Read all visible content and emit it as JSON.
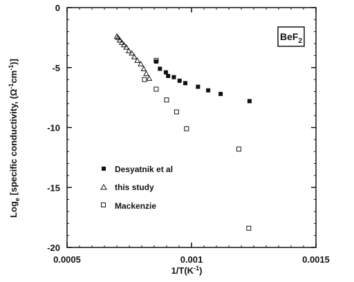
{
  "chart_data": {
    "type": "scatter",
    "xlabel": "1/T(K-1)",
    "ylabel": "Loge [specific conductivity, (Ω-1cm-1)]",
    "xlim": [
      0.0005,
      0.0015
    ],
    "ylim": [
      -20,
      0
    ],
    "x_ticks": [
      "0.0005",
      "0.001",
      "0.0015"
    ],
    "y_ticks": [
      "0",
      "-5",
      "-10",
      "-15",
      "-20"
    ],
    "annotation": "BeF2",
    "legend_position": "lower-left",
    "series": [
      {
        "name": "Desyatnik et al",
        "marker": "filled-square",
        "points": [
          [
            0.000858,
            -4.5
          ],
          [
            0.000873,
            -5.1
          ],
          [
            0.000897,
            -5.4
          ],
          [
            0.000906,
            -5.7
          ],
          [
            0.000929,
            -5.8
          ],
          [
            0.000952,
            -6.1
          ],
          [
            0.000975,
            -6.3
          ],
          [
            0.001026,
            -6.6
          ],
          [
            0.001067,
            -6.9
          ],
          [
            0.001117,
            -7.2
          ],
          [
            0.001233,
            -7.8
          ]
        ]
      },
      {
        "name": "this study",
        "marker": "open-triangle",
        "points": [
          [
            0.0007,
            -2.4
          ],
          [
            0.000705,
            -2.5
          ],
          [
            0.000712,
            -2.7
          ],
          [
            0.00072,
            -2.9
          ],
          [
            0.000728,
            -3.1
          ],
          [
            0.000738,
            -3.3
          ],
          [
            0.000748,
            -3.6
          ],
          [
            0.00076,
            -3.8
          ],
          [
            0.00077,
            -4.1
          ],
          [
            0.000782,
            -4.4
          ],
          [
            0.000796,
            -4.7
          ],
          [
            0.000808,
            -5.1
          ],
          [
            0.000818,
            -5.5
          ],
          [
            0.00083,
            -5.9
          ]
        ]
      },
      {
        "name": "Mackenzie",
        "marker": "open-square",
        "points": [
          [
            0.000858,
            -4.4
          ],
          [
            0.000811,
            -6.0
          ],
          [
            0.000858,
            -6.8
          ],
          [
            0.0009,
            -7.7
          ],
          [
            0.00094,
            -8.7
          ],
          [
            0.00098,
            -10.1
          ],
          [
            0.00119,
            -11.8
          ],
          [
            0.00123,
            -18.4
          ]
        ]
      }
    ]
  }
}
